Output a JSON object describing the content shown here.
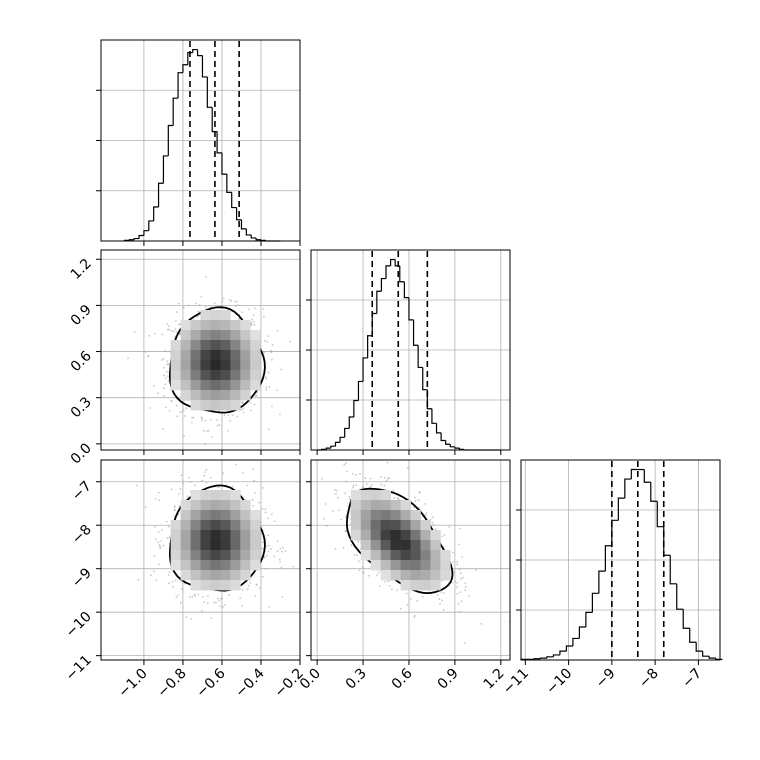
{
  "chart_data": [
    {
      "type": "histogram",
      "panel": "x-marginal",
      "x_ticks": [],
      "bin_edges": [
        -1.1,
        -1.075,
        -1.05,
        -1.025,
        -1.0,
        -0.975,
        -0.95,
        -0.925,
        -0.9,
        -0.875,
        -0.85,
        -0.825,
        -0.8,
        -0.775,
        -0.75,
        -0.725,
        -0.7,
        -0.675,
        -0.65,
        -0.625,
        -0.6,
        -0.575,
        -0.55,
        -0.525,
        -0.5,
        -0.475,
        -0.45,
        -0.425,
        -0.4,
        -0.375,
        -0.35,
        -0.325,
        -0.3
      ],
      "counts": [
        1,
        2,
        4,
        9,
        17,
        33,
        56,
        95,
        140,
        190,
        235,
        277,
        290,
        310,
        315,
        305,
        270,
        220,
        180,
        145,
        110,
        80,
        55,
        35,
        20,
        10,
        5,
        2,
        1,
        0,
        0,
        0
      ],
      "quantiles": [
        -0.764,
        -0.636,
        -0.512
      ],
      "xlim": [
        -1.22,
        -0.2
      ]
    },
    {
      "type": "scatter",
      "panel": "y-vs-x",
      "x_ticks": [
        "−1.0",
        "−0.8",
        "−0.6",
        "−0.4",
        "−0.2"
      ],
      "x_tick_values": [
        -1.0,
        -0.8,
        -0.6,
        -0.4,
        -0.2
      ],
      "y_ticks": [
        "0.0",
        "0.3",
        "0.6",
        "0.9",
        "1.2"
      ],
      "y_tick_values": [
        0.0,
        0.3,
        0.6,
        0.9,
        1.2
      ],
      "xlim": [
        -1.22,
        -0.2
      ],
      "ylim": [
        -0.04,
        1.26
      ],
      "center": [
        -0.63,
        0.53
      ],
      "sigma": [
        0.12,
        0.17
      ],
      "correlation": 0.0,
      "contour_sigmas": [
        0.5,
        1.0,
        1.5,
        2.0
      ]
    },
    {
      "type": "histogram",
      "panel": "y-marginal",
      "x_ticks": [],
      "bin_edges": [
        0.0,
        0.03,
        0.06,
        0.09,
        0.12,
        0.15,
        0.18,
        0.21,
        0.24,
        0.27,
        0.3,
        0.33,
        0.36,
        0.39,
        0.42,
        0.45,
        0.48,
        0.51,
        0.54,
        0.57,
        0.6,
        0.63,
        0.66,
        0.69,
        0.72,
        0.75,
        0.78,
        0.81,
        0.84,
        0.87,
        0.9,
        0.93,
        0.96,
        0.99,
        1.02,
        1.05,
        1.08,
        1.11,
        1.14,
        1.17,
        1.2
      ],
      "counts": [
        0,
        1,
        3,
        6,
        12,
        20,
        34,
        52,
        78,
        108,
        145,
        180,
        215,
        250,
        270,
        290,
        300,
        290,
        265,
        240,
        205,
        165,
        130,
        95,
        65,
        42,
        27,
        15,
        9,
        5,
        3,
        1,
        0,
        0,
        0,
        0,
        0,
        0,
        0,
        0
      ],
      "quantiles": [
        0.36,
        0.53,
        0.72
      ],
      "xlim": [
        -0.04,
        1.26
      ]
    },
    {
      "type": "scatter",
      "panel": "z-vs-x",
      "x_ticks": [
        "−1.0",
        "−0.8",
        "−0.6",
        "−0.4",
        "−0.2"
      ],
      "x_tick_values": [
        -1.0,
        -0.8,
        -0.6,
        -0.4,
        -0.2
      ],
      "y_ticks": [
        "−11",
        "−10",
        "−9",
        "−8",
        "−7"
      ],
      "y_tick_values": [
        -11,
        -10,
        -9,
        -8,
        -7
      ],
      "xlim": [
        -1.22,
        -0.2
      ],
      "ylim": [
        -11.1,
        -6.5
      ],
      "center": [
        -0.63,
        -8.35
      ],
      "sigma": [
        0.12,
        0.6
      ],
      "correlation": 0.0,
      "contour_sigmas": [
        0.5,
        1.0,
        1.5,
        2.0
      ]
    },
    {
      "type": "scatter",
      "panel": "z-vs-y",
      "x_ticks": [
        "0.0",
        "0.3",
        "0.6",
        "0.9",
        "1.2"
      ],
      "x_tick_values": [
        0.0,
        0.3,
        0.6,
        0.9,
        1.2
      ],
      "y_ticks": [],
      "xlim": [
        -0.04,
        1.26
      ],
      "ylim": [
        -11.1,
        -6.5
      ],
      "center": [
        0.53,
        -8.35
      ],
      "sigma": [
        0.17,
        0.6
      ],
      "correlation": -0.55,
      "contour_sigmas": [
        0.5,
        1.0,
        1.5,
        2.0
      ]
    },
    {
      "type": "histogram",
      "panel": "z-marginal",
      "x_ticks": [
        "−11",
        "−10",
        "−9",
        "−8",
        "−7"
      ],
      "x_tick_values": [
        -11,
        -10,
        -9,
        -8,
        -7
      ],
      "bin_edges": [
        -11.1,
        -10.95,
        -10.8,
        -10.65,
        -10.5,
        -10.35,
        -10.2,
        -10.05,
        -9.9,
        -9.75,
        -9.6,
        -9.45,
        -9.3,
        -9.15,
        -9.0,
        -8.85,
        -8.7,
        -8.55,
        -8.4,
        -8.25,
        -8.1,
        -7.95,
        -7.8,
        -7.65,
        -7.5,
        -7.35,
        -7.2,
        -7.05,
        -6.9,
        -6.75,
        -6.6,
        -6.45
      ],
      "counts": [
        1,
        1,
        2,
        3,
        5,
        8,
        14,
        22,
        34,
        52,
        75,
        105,
        140,
        180,
        220,
        255,
        285,
        300,
        300,
        280,
        250,
        210,
        165,
        120,
        80,
        50,
        28,
        14,
        6,
        3,
        1
      ],
      "quantiles": [
        -9.0,
        -8.4,
        -7.8
      ],
      "xlim": [
        -11.1,
        -6.5
      ]
    }
  ]
}
